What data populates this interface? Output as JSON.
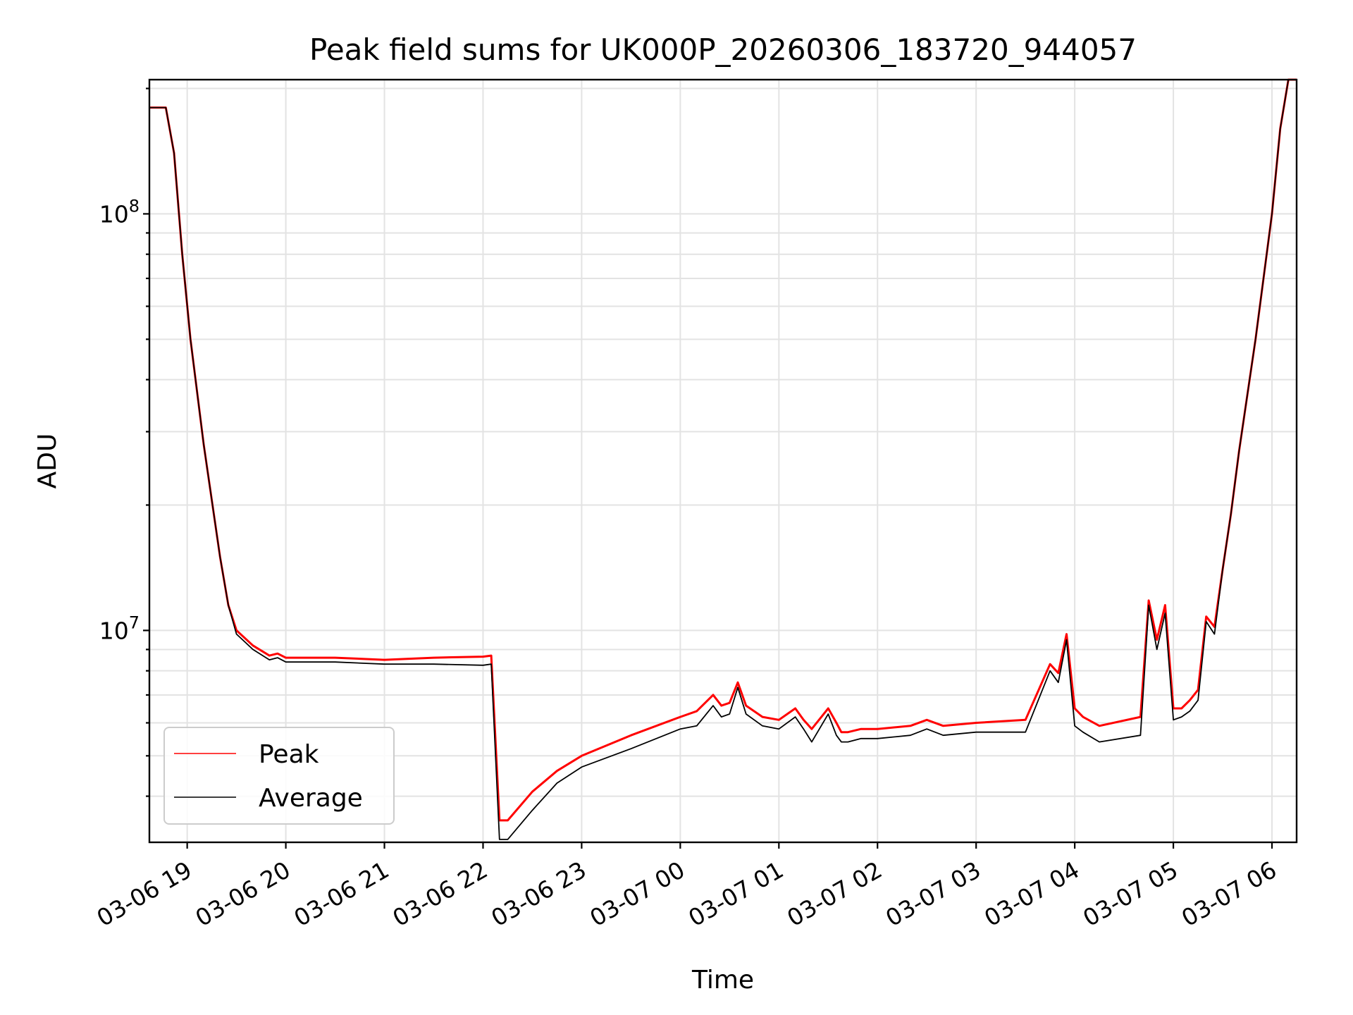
{
  "chart_data": {
    "type": "line",
    "title": "Peak field sums for UK000P_20260306_183720_944057",
    "xlabel": "Time",
    "ylabel": "ADU",
    "yscale": "log",
    "xlim": [
      "2026-03-06 18:37",
      "2026-03-07 06:15"
    ],
    "ylim": [
      3100000,
      210000000
    ],
    "x_ticks": [
      "03-06 19",
      "03-06 20",
      "03-06 21",
      "03-06 22",
      "03-06 23",
      "03-07 00",
      "03-07 01",
      "03-07 02",
      "03-07 03",
      "03-07 04",
      "03-07 05",
      "03-07 06"
    ],
    "y_ticks": [
      {
        "mantissa": "10",
        "exponent": "7",
        "value": 10000000
      },
      {
        "mantissa": "10",
        "exponent": "8",
        "value": 100000000
      }
    ],
    "grid": true,
    "legend": "lower left",
    "series": [
      {
        "name": "Peak",
        "color": "#ff0000",
        "x": [
          "2026-03-06 18:37",
          "2026-03-06 18:47",
          "2026-03-06 18:52",
          "2026-03-06 18:57",
          "2026-03-06 19:02",
          "2026-03-06 19:10",
          "2026-03-06 19:20",
          "2026-03-06 19:25",
          "2026-03-06 19:30",
          "2026-03-06 19:40",
          "2026-03-06 19:50",
          "2026-03-06 19:55",
          "2026-03-06 20:00",
          "2026-03-06 20:30",
          "2026-03-06 21:00",
          "2026-03-06 21:30",
          "2026-03-06 22:00",
          "2026-03-06 22:05",
          "2026-03-06 22:10",
          "2026-03-06 22:15",
          "2026-03-06 22:30",
          "2026-03-06 22:45",
          "2026-03-06 23:00",
          "2026-03-06 23:30",
          "2026-03-07 00:00",
          "2026-03-07 00:10",
          "2026-03-07 00:20",
          "2026-03-07 00:25",
          "2026-03-07 00:30",
          "2026-03-07 00:35",
          "2026-03-07 00:40",
          "2026-03-07 00:50",
          "2026-03-07 01:00",
          "2026-03-07 01:10",
          "2026-03-07 01:15",
          "2026-03-07 01:20",
          "2026-03-07 01:30",
          "2026-03-07 01:35",
          "2026-03-07 01:38",
          "2026-03-07 01:42",
          "2026-03-07 01:50",
          "2026-03-07 02:00",
          "2026-03-07 02:20",
          "2026-03-07 02:30",
          "2026-03-07 02:40",
          "2026-03-07 03:00",
          "2026-03-07 03:30",
          "2026-03-07 03:45",
          "2026-03-07 03:50",
          "2026-03-07 03:55",
          "2026-03-07 04:00",
          "2026-03-07 04:05",
          "2026-03-07 04:15",
          "2026-03-07 04:40",
          "2026-03-07 04:45",
          "2026-03-07 04:50",
          "2026-03-07 04:55",
          "2026-03-07 05:00",
          "2026-03-07 05:05",
          "2026-03-07 05:10",
          "2026-03-07 05:15",
          "2026-03-07 05:20",
          "2026-03-07 05:25",
          "2026-03-07 05:30",
          "2026-03-07 05:35",
          "2026-03-07 05:40",
          "2026-03-07 05:50",
          "2026-03-07 06:00",
          "2026-03-07 06:05",
          "2026-03-07 06:10",
          "2026-03-07 06:15"
        ],
        "y": [
          180000000,
          180000000,
          140000000,
          80000000,
          50000000,
          28000000,
          15000000,
          11500000,
          10000000,
          9200000,
          8700000,
          8800000,
          8600000,
          8600000,
          8500000,
          8600000,
          8650000,
          8700000,
          3500000,
          3500000,
          4100000,
          4600000,
          5000000,
          5600000,
          6200000,
          6400000,
          7000000,
          6600000,
          6700000,
          7500000,
          6600000,
          6200000,
          6100000,
          6500000,
          6100000,
          5800000,
          6500000,
          6000000,
          5700000,
          5700000,
          5800000,
          5800000,
          5900000,
          6100000,
          5900000,
          6000000,
          6100000,
          8300000,
          7900000,
          9800000,
          6500000,
          6200000,
          5900000,
          6200000,
          11800000,
          9500000,
          11500000,
          6500000,
          6500000,
          6800000,
          7200000,
          10800000,
          10200000,
          14000000,
          19000000,
          27000000,
          50000000,
          100000000,
          160000000,
          210000000,
          210000000
        ]
      },
      {
        "name": "Average",
        "color": "#000000",
        "x": [
          "2026-03-06 18:37",
          "2026-03-06 18:47",
          "2026-03-06 18:52",
          "2026-03-06 18:57",
          "2026-03-06 19:02",
          "2026-03-06 19:10",
          "2026-03-06 19:20",
          "2026-03-06 19:25",
          "2026-03-06 19:30",
          "2026-03-06 19:40",
          "2026-03-06 19:50",
          "2026-03-06 19:55",
          "2026-03-06 20:00",
          "2026-03-06 20:30",
          "2026-03-06 21:00",
          "2026-03-06 21:30",
          "2026-03-06 22:00",
          "2026-03-06 22:05",
          "2026-03-06 22:10",
          "2026-03-06 22:15",
          "2026-03-06 22:30",
          "2026-03-06 22:45",
          "2026-03-06 23:00",
          "2026-03-06 23:30",
          "2026-03-07 00:00",
          "2026-03-07 00:10",
          "2026-03-07 00:20",
          "2026-03-07 00:25",
          "2026-03-07 00:30",
          "2026-03-07 00:35",
          "2026-03-07 00:40",
          "2026-03-07 00:50",
          "2026-03-07 01:00",
          "2026-03-07 01:10",
          "2026-03-07 01:15",
          "2026-03-07 01:20",
          "2026-03-07 01:30",
          "2026-03-07 01:35",
          "2026-03-07 01:38",
          "2026-03-07 01:42",
          "2026-03-07 01:50",
          "2026-03-07 02:00",
          "2026-03-07 02:20",
          "2026-03-07 02:30",
          "2026-03-07 02:40",
          "2026-03-07 03:00",
          "2026-03-07 03:30",
          "2026-03-07 03:45",
          "2026-03-07 03:50",
          "2026-03-07 03:55",
          "2026-03-07 04:00",
          "2026-03-07 04:05",
          "2026-03-07 04:15",
          "2026-03-07 04:40",
          "2026-03-07 04:45",
          "2026-03-07 04:50",
          "2026-03-07 04:55",
          "2026-03-07 05:00",
          "2026-03-07 05:05",
          "2026-03-07 05:10",
          "2026-03-07 05:15",
          "2026-03-07 05:20",
          "2026-03-07 05:25",
          "2026-03-07 05:30",
          "2026-03-07 05:35",
          "2026-03-07 05:40",
          "2026-03-07 05:50",
          "2026-03-07 06:00",
          "2026-03-07 06:05",
          "2026-03-07 06:10",
          "2026-03-07 06:15"
        ],
        "y": [
          180000000,
          180000000,
          140000000,
          80000000,
          50000000,
          28000000,
          15000000,
          11500000,
          9800000,
          9000000,
          8500000,
          8600000,
          8400000,
          8400000,
          8300000,
          8300000,
          8250000,
          8300000,
          3150000,
          3150000,
          3700000,
          4300000,
          4700000,
          5200000,
          5800000,
          5900000,
          6600000,
          6200000,
          6300000,
          7300000,
          6300000,
          5900000,
          5800000,
          6200000,
          5800000,
          5400000,
          6300000,
          5600000,
          5400000,
          5400000,
          5500000,
          5500000,
          5600000,
          5800000,
          5600000,
          5700000,
          5700000,
          8000000,
          7500000,
          9500000,
          5900000,
          5700000,
          5400000,
          5600000,
          11500000,
          9000000,
          11000000,
          6100000,
          6200000,
          6400000,
          6800000,
          10500000,
          9800000,
          14000000,
          19000000,
          27000000,
          50000000,
          100000000,
          160000000,
          210000000,
          210000000
        ]
      }
    ]
  }
}
